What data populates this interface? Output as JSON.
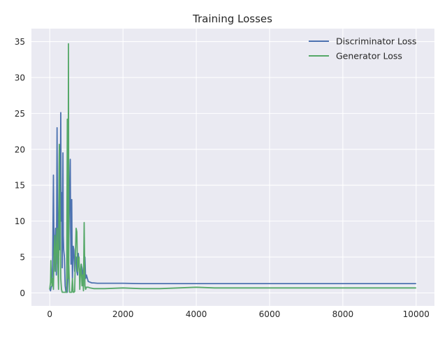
{
  "chart_data": {
    "type": "line",
    "title": "Training Losses",
    "xlabel": "",
    "ylabel": "",
    "xlim": [
      -500,
      10500
    ],
    "ylim": [
      -1.8,
      36.8
    ],
    "xticks": [
      0,
      2000,
      4000,
      6000,
      8000,
      10000
    ],
    "yticks": [
      0,
      5,
      10,
      15,
      20,
      25,
      30,
      35
    ],
    "grid": true,
    "legend": "top-right",
    "series": [
      {
        "name": "Discriminator Loss",
        "color": "#4c72b0",
        "x": [
          0,
          20,
          40,
          60,
          80,
          100,
          110,
          120,
          140,
          160,
          180,
          200,
          210,
          220,
          240,
          260,
          280,
          290,
          300,
          310,
          320,
          340,
          360,
          370,
          380,
          400,
          420,
          440,
          460,
          480,
          500,
          520,
          540,
          560,
          570,
          580,
          600,
          610,
          620,
          640,
          660,
          680,
          700,
          720,
          740,
          760,
          780,
          800,
          820,
          840,
          860,
          880,
          900,
          920,
          940,
          960,
          980,
          1000,
          1050,
          1100,
          1150,
          1200,
          1300,
          1500,
          2000,
          2500,
          3000,
          3500,
          4000,
          4500,
          5000,
          5500,
          6000,
          6500,
          7000,
          7500,
          8000,
          8500,
          9000,
          9500,
          10000
        ],
        "y": [
          0.6,
          0.3,
          0.8,
          1.0,
          4.0,
          16.4,
          10.0,
          3.0,
          6.0,
          9.0,
          2.5,
          23.0,
          12.0,
          4.0,
          8.0,
          20.5,
          6.0,
          15.0,
          25.1,
          10.0,
          14.0,
          3.5,
          19.5,
          8.0,
          6.0,
          5.0,
          1.0,
          0.2,
          0.1,
          0.1,
          3.0,
          7.0,
          14.5,
          18.6,
          9.0,
          4.0,
          13.0,
          6.0,
          2.0,
          6.5,
          6.0,
          3.0,
          4.5,
          5.0,
          3.0,
          2.5,
          5.5,
          4.0,
          3.0,
          2.5,
          4.0,
          3.5,
          2.5,
          3.0,
          4.5,
          5.0,
          2.0,
          2.5,
          1.6,
          1.5,
          1.4,
          1.4,
          1.35,
          1.35,
          1.35,
          1.3,
          1.3,
          1.3,
          1.3,
          1.3,
          1.3,
          1.3,
          1.3,
          1.3,
          1.3,
          1.3,
          1.3,
          1.3,
          1.3,
          1.3,
          1.3
        ]
      },
      {
        "name": "Generator Loss",
        "color": "#55a868",
        "x": [
          0,
          20,
          30,
          40,
          60,
          80,
          100,
          120,
          140,
          160,
          180,
          200,
          220,
          240,
          260,
          280,
          300,
          320,
          340,
          360,
          380,
          400,
          420,
          440,
          460,
          480,
          500,
          510,
          520,
          540,
          560,
          580,
          600,
          620,
          640,
          660,
          680,
          700,
          720,
          740,
          760,
          780,
          800,
          820,
          840,
          860,
          880,
          900,
          920,
          940,
          960,
          980,
          1000,
          1050,
          1100,
          1200,
          1500,
          2000,
          2500,
          3000,
          3500,
          4000,
          4500,
          5000,
          5500,
          6000,
          6500,
          7000,
          7500,
          8000,
          8500,
          9000,
          9500,
          10000
        ],
        "y": [
          0.5,
          1.5,
          4.5,
          2.5,
          1.0,
          2.0,
          0.5,
          6.0,
          8.0,
          3.0,
          6.0,
          9.0,
          4.0,
          0.5,
          20.7,
          12.0,
          2.0,
          0.5,
          0.1,
          0.1,
          0.1,
          0.1,
          0.1,
          0.1,
          0.1,
          24.2,
          2.0,
          34.7,
          4.0,
          0.1,
          0.1,
          0.1,
          0.1,
          2.0,
          0.1,
          0.1,
          0.2,
          5.0,
          9.0,
          8.5,
          3.0,
          4.5,
          5.0,
          0.5,
          3.0,
          4.0,
          1.0,
          2.5,
          0.3,
          9.8,
          1.0,
          0.5,
          0.8,
          0.8,
          0.7,
          0.6,
          0.6,
          0.7,
          0.6,
          0.6,
          0.7,
          0.8,
          0.7,
          0.7,
          0.7,
          0.7,
          0.7,
          0.7,
          0.7,
          0.7,
          0.7,
          0.7,
          0.7,
          0.7
        ]
      }
    ]
  }
}
